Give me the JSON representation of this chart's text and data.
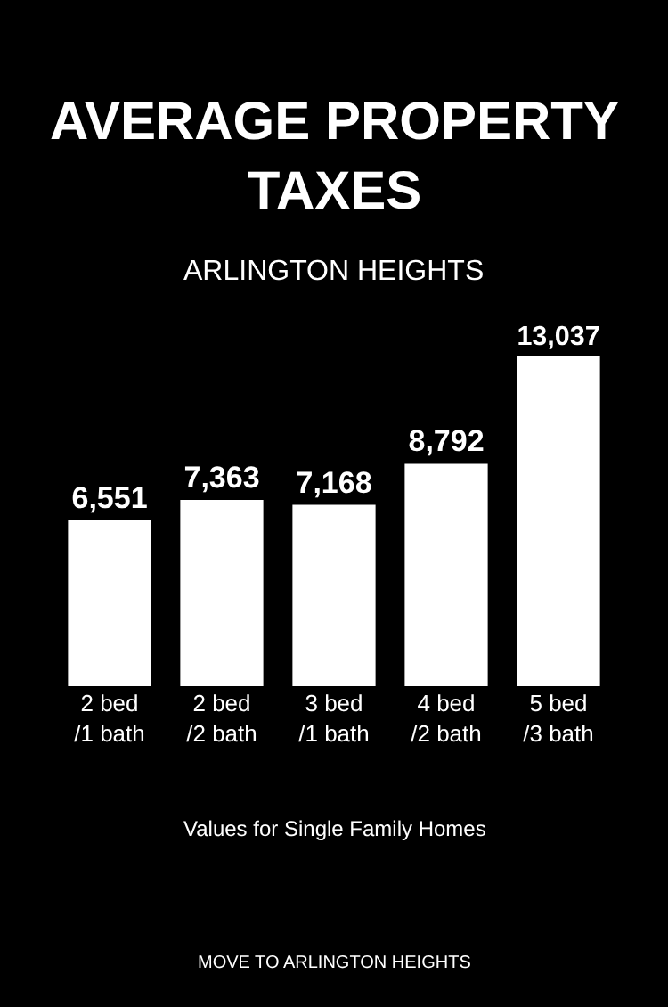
{
  "chart_data": {
    "type": "bar",
    "title": "AVERAGE PROPERTY TAXES",
    "subtitle": "ARLINGTON HEIGHTS",
    "categories": [
      "2 bed /1 bath",
      "2 bed /2 bath",
      "3 bed /1 bath",
      "4 bed /2 bath",
      "5 bed /3 bath"
    ],
    "values": [
      6551,
      7363,
      7168,
      8792,
      13037
    ],
    "value_labels": [
      "6,551",
      "7,363",
      "7,168",
      "8,792",
      "13,037"
    ],
    "color": "#ffffff",
    "grid": false,
    "legend": false,
    "annotations": [
      "Values for Single Family Homes",
      "MOVE TO ARLINGTON HEIGHTS"
    ]
  }
}
